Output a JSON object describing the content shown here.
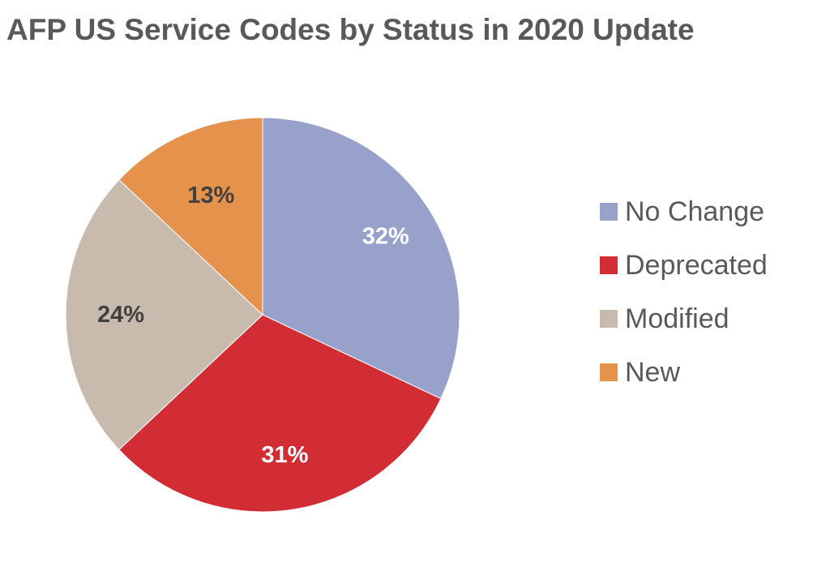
{
  "chart_data": {
    "type": "pie",
    "title": "AFP US Service Codes by Status in 2020 Update",
    "legend_position": "right",
    "slices": [
      {
        "label": "No Change",
        "value": 32,
        "display": "32%",
        "color": "#98a1c9",
        "label_color": "#ffffff"
      },
      {
        "label": "Deprecated",
        "value": 31,
        "display": "31%",
        "color": "#d22c35",
        "label_color": "#ffffff"
      },
      {
        "label": "Modified",
        "value": 24,
        "display": "24%",
        "color": "#c8bbad",
        "label_color": "#404040"
      },
      {
        "label": "New",
        "value": 13,
        "display": "13%",
        "color": "#e5934c",
        "label_color": "#404040"
      }
    ]
  }
}
